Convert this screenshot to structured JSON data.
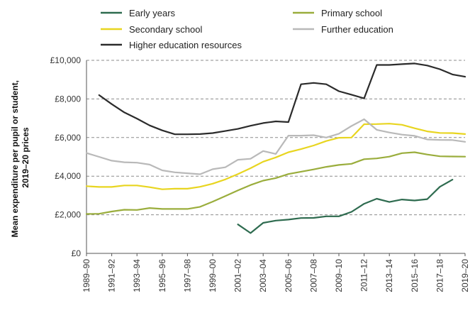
{
  "chart_data": {
    "type": "line",
    "ylabel": "Mean expenditure per pupil or student, 2019–20 prices",
    "ylabel_lines": [
      "Mean expenditure per pupil or student,",
      "2019–20 prices"
    ],
    "ylim": [
      0,
      10000
    ],
    "y_ticks": [
      {
        "value": 0,
        "label": "£0"
      },
      {
        "value": 2000,
        "label": "£2,000"
      },
      {
        "value": 4000,
        "label": "£4,000"
      },
      {
        "value": 6000,
        "label": "£6,000"
      },
      {
        "value": 8000,
        "label": "£8,000"
      },
      {
        "value": 10000,
        "label": "£10,000"
      }
    ],
    "x": [
      "1989–90",
      "1990–91",
      "1991–92",
      "1992–93",
      "1993–94",
      "1994–95",
      "1995–96",
      "1996–97",
      "1997–98",
      "1998–99",
      "1999–00",
      "2000–01",
      "2001–02",
      "2002–03",
      "2003–04",
      "2004–05",
      "2005–06",
      "2006–07",
      "2007–08",
      "2008–09",
      "2009–10",
      "2010–11",
      "2011–12",
      "2012–13",
      "2013–14",
      "2014–15",
      "2015–16",
      "2016–17",
      "2017–18",
      "2018–19",
      "2019–20"
    ],
    "x_tick_labels": [
      "1989–90",
      "1991–92",
      "1993–94",
      "1995–96",
      "1997–98",
      "1999–00",
      "2001–02",
      "2003–04",
      "2005–06",
      "2007–08",
      "2009–10",
      "2011–12",
      "2013–14",
      "2015–16",
      "2017–18",
      "2019–20"
    ],
    "grid": "horizontal dashed",
    "legend_position": "top",
    "series": [
      {
        "name": "Early years",
        "color": "#2e6b4f",
        "values": [
          null,
          null,
          null,
          null,
          null,
          null,
          null,
          null,
          null,
          null,
          null,
          null,
          1500,
          1050,
          1580,
          1700,
          1750,
          1830,
          1840,
          1920,
          1920,
          2150,
          2570,
          2830,
          2660,
          2790,
          2740,
          2810,
          3450,
          3820,
          null
        ]
      },
      {
        "name": "Primary school",
        "color": "#9aad3c",
        "values": [
          2040,
          2050,
          2170,
          2260,
          2250,
          2350,
          2300,
          2300,
          2300,
          2410,
          2680,
          2970,
          3260,
          3540,
          3770,
          3900,
          4110,
          4230,
          4350,
          4480,
          4580,
          4640,
          4880,
          4920,
          5010,
          5190,
          5240,
          5120,
          5030,
          5020,
          5010
        ]
      },
      {
        "name": "Secondary school",
        "color": "#e8d520",
        "values": [
          3480,
          3440,
          3440,
          3520,
          3520,
          3430,
          3320,
          3350,
          3350,
          3450,
          3610,
          3830,
          4110,
          4410,
          4750,
          4970,
          5240,
          5400,
          5590,
          5820,
          5990,
          6000,
          6690,
          6700,
          6720,
          6660,
          6480,
          6320,
          6240,
          6230,
          6180
        ]
      },
      {
        "name": "Further education",
        "color": "#b9b9b9",
        "values": [
          5200,
          5000,
          4800,
          4720,
          4700,
          4600,
          4300,
          4200,
          4150,
          4100,
          4360,
          4460,
          4850,
          4900,
          5300,
          5150,
          6100,
          6100,
          6120,
          6000,
          6200,
          6600,
          6950,
          6400,
          6260,
          6150,
          6090,
          5900,
          5880,
          5870,
          5780
        ]
      },
      {
        "name": "Higher education resources",
        "color": "#2b2b2b",
        "values": [
          null,
          8200,
          7730,
          7300,
          6980,
          6630,
          6370,
          6170,
          6170,
          6180,
          6230,
          6340,
          6450,
          6610,
          6750,
          6840,
          6800,
          8760,
          8830,
          8760,
          8400,
          8220,
          8030,
          9760,
          9760,
          9800,
          9840,
          9730,
          9540,
          9270,
          9150
        ]
      }
    ]
  }
}
